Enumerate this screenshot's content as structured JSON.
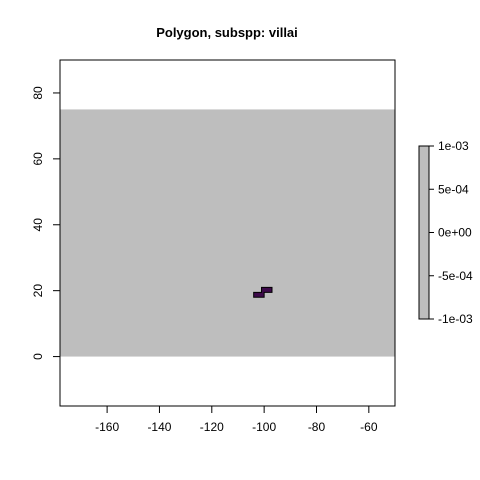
{
  "title": "Polygon, subspp: villai",
  "map": {
    "x_range": [
      -178,
      -50
    ],
    "y_range": [
      -15,
      90
    ],
    "raster_band": {
      "y_min": 0,
      "y_max": 75,
      "x_min": -178,
      "x_max": -50,
      "color": "#bebebe"
    },
    "polygon": {
      "fill": "#3d0a4a",
      "outline": "#000000",
      "points": [
        [
          -104,
          18
        ],
        [
          -100,
          18
        ],
        [
          -100,
          19.5
        ],
        [
          -97,
          19.5
        ],
        [
          -97,
          21
        ],
        [
          -101,
          21
        ],
        [
          -101,
          19.5
        ],
        [
          -104,
          19.5
        ]
      ]
    }
  },
  "axes": {
    "x_ticks": [
      "-160",
      "-140",
      "-120",
      "-100",
      "-80",
      "-60"
    ],
    "x_tick_values": [
      -160,
      -140,
      -120,
      -100,
      -80,
      -60
    ],
    "y_ticks": [
      "0",
      "20",
      "40",
      "60",
      "80"
    ],
    "y_tick_values": [
      0,
      20,
      40,
      60,
      80
    ]
  },
  "legend": {
    "color": "#bebebe",
    "labels": [
      "1e-03",
      "5e-04",
      "0e+00",
      "-5e-04",
      "-1e-03"
    ]
  }
}
